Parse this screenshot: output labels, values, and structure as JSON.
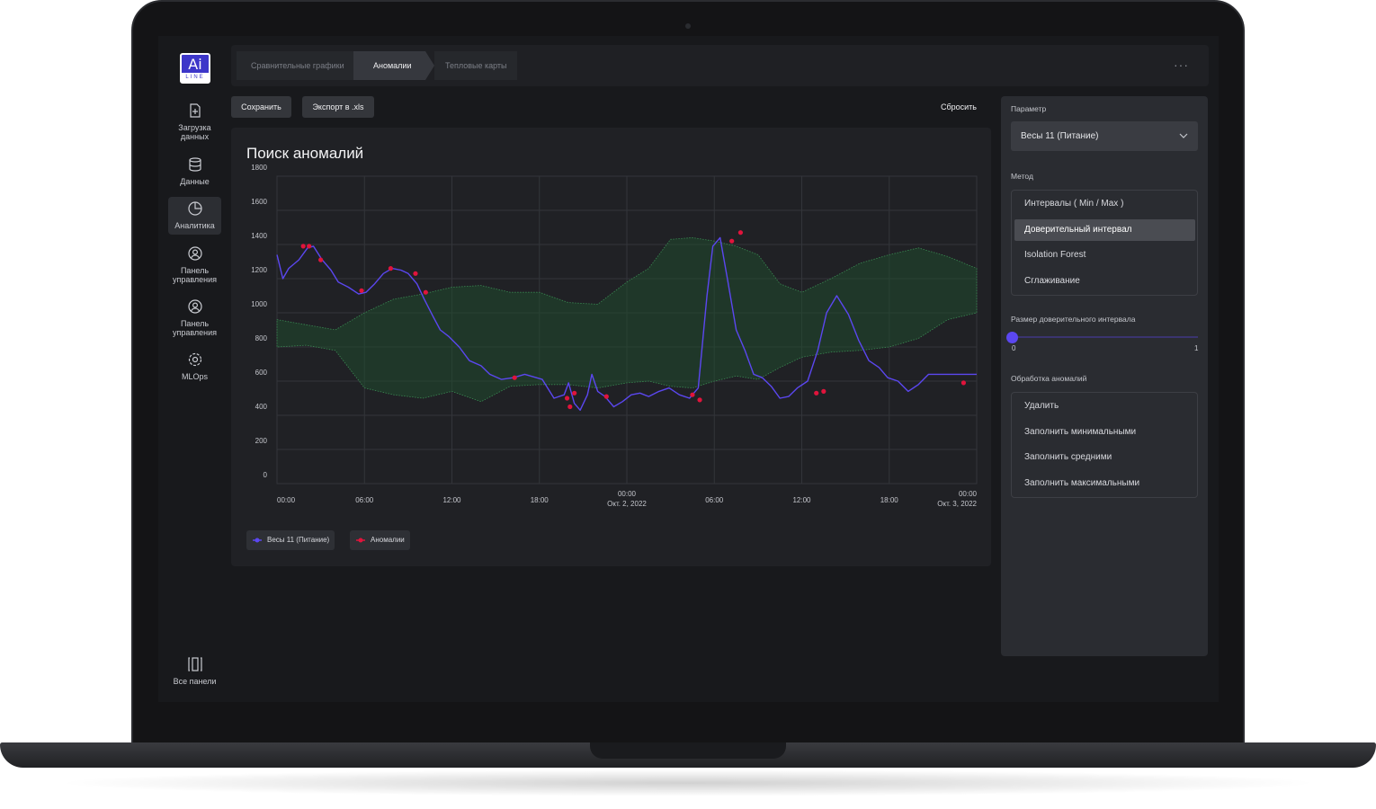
{
  "sidebar": {
    "logo_text": "Ai",
    "logo_sub": "LINE",
    "items": [
      {
        "label": "Загрузка данных",
        "icon": "file-upload-icon"
      },
      {
        "label": "Данные",
        "icon": "database-icon"
      },
      {
        "label": "Аналитика",
        "icon": "pie-chart-icon",
        "active": true
      },
      {
        "label": "Панель управления",
        "icon": "user-panel-icon"
      },
      {
        "label": "Панель управления",
        "icon": "user-panel-icon"
      },
      {
        "label": "MLOps",
        "icon": "gear-icon"
      }
    ],
    "all_panels": {
      "label": "Все панели",
      "icon": "columns-icon"
    }
  },
  "tabs": [
    {
      "label": "Сравнительные графики"
    },
    {
      "label": "Аномалии",
      "active": true
    },
    {
      "label": "Тепловые карты"
    }
  ],
  "more_icon": "more-horizontal-icon",
  "toolbar": {
    "save": "Сохранить",
    "export": "Экспорт в .xls",
    "reset": "Сбросить"
  },
  "chart_card": {
    "title": "Поиск аномалий"
  },
  "chart_data": {
    "type": "line",
    "title": "Поиск аномалий",
    "xlabel": "",
    "ylabel": "",
    "ylim": [
      0,
      1800
    ],
    "y_ticks": [
      0,
      200,
      400,
      600,
      800,
      1000,
      1200,
      1400,
      1600,
      1800
    ],
    "x_ticks": [
      {
        "t": 0,
        "label": "00:00",
        "sub": ""
      },
      {
        "t": 6,
        "label": "06:00",
        "sub": ""
      },
      {
        "t": 12,
        "label": "12:00",
        "sub": ""
      },
      {
        "t": 18,
        "label": "18:00",
        "sub": ""
      },
      {
        "t": 24,
        "label": "00:00",
        "sub": "Окт. 2, 2022"
      },
      {
        "t": 30,
        "label": "06:00",
        "sub": ""
      },
      {
        "t": 36,
        "label": "12:00",
        "sub": ""
      },
      {
        "t": 42,
        "label": "18:00",
        "sub": ""
      },
      {
        "t": 48,
        "label": "00:00",
        "sub": "Окт. 3, 2022"
      }
    ],
    "grid": true,
    "legend_position": "bottom-left",
    "colors": {
      "series": "#5b47f0",
      "anomaly": "#e0143c",
      "band_fill": "#1f4a2e",
      "band_line": "#3a8a52"
    },
    "series": [
      {
        "name": "Весы 11 (Питание)",
        "t": [
          0,
          0.4,
          0.8,
          1.5,
          2.1,
          2.5,
          3.1,
          3.7,
          4.2,
          4.9,
          5.6,
          6.1,
          6.7,
          7.3,
          7.9,
          8.5,
          9.0,
          9.6,
          10.1,
          10.7,
          11.2,
          11.8,
          12.5,
          13.2,
          14.0,
          14.6,
          15.4,
          16.2,
          17.0,
          18.2,
          19.0,
          19.7,
          20.0,
          20.4,
          20.8,
          21.3,
          21.6,
          22.0,
          22.5,
          23.1,
          23.7,
          24.3,
          24.9,
          25.5,
          26.2,
          26.9,
          27.6,
          28.3,
          28.9,
          29.5,
          29.9,
          30.4,
          30.9,
          31.5,
          32.1,
          32.7,
          33.3,
          33.9,
          34.5,
          35.1,
          35.7,
          36.4,
          37.1,
          37.7,
          38.4,
          39.2,
          39.9,
          40.6,
          41.3,
          41.9,
          42.6,
          43.3,
          44.0,
          44.7,
          45.4,
          46.1,
          46.8,
          47.3,
          47.8,
          48.0
        ],
        "values": [
          1340,
          1200,
          1260,
          1310,
          1380,
          1390,
          1310,
          1250,
          1180,
          1150,
          1110,
          1120,
          1170,
          1230,
          1260,
          1250,
          1230,
          1170,
          1080,
          980,
          900,
          860,
          800,
          720,
          690,
          640,
          610,
          620,
          640,
          610,
          500,
          520,
          590,
          470,
          430,
          520,
          640,
          540,
          510,
          450,
          480,
          520,
          530,
          510,
          540,
          560,
          520,
          500,
          560,
          1100,
          1390,
          1440,
          1200,
          900,
          780,
          640,
          620,
          570,
          500,
          510,
          560,
          600,
          780,
          1000,
          1100,
          990,
          840,
          720,
          680,
          620,
          600,
          540,
          580,
          640,
          640,
          640,
          640,
          640,
          640,
          640
        ],
        "anomalies": [
          {
            "t": 1.8,
            "v": 1390
          },
          {
            "t": 2.2,
            "v": 1390
          },
          {
            "t": 3.0,
            "v": 1310
          },
          {
            "t": 5.8,
            "v": 1130
          },
          {
            "t": 7.8,
            "v": 1260
          },
          {
            "t": 9.5,
            "v": 1230
          },
          {
            "t": 10.2,
            "v": 1120
          },
          {
            "t": 16.3,
            "v": 620
          },
          {
            "t": 19.9,
            "v": 500
          },
          {
            "t": 20.1,
            "v": 450
          },
          {
            "t": 20.4,
            "v": 530
          },
          {
            "t": 22.6,
            "v": 510
          },
          {
            "t": 28.5,
            "v": 520
          },
          {
            "t": 29.0,
            "v": 490
          },
          {
            "t": 31.2,
            "v": 1420
          },
          {
            "t": 31.8,
            "v": 1470
          },
          {
            "t": 37.0,
            "v": 530
          },
          {
            "t": 37.5,
            "v": 540
          },
          {
            "t": 47.1,
            "v": 590
          }
        ]
      }
    ],
    "band": {
      "t": [
        0,
        2,
        4,
        6,
        8,
        10,
        12,
        14,
        16,
        18,
        20,
        22,
        24,
        25.5,
        27,
        28.5,
        30,
        31.5,
        33,
        34.5,
        36,
        38,
        40,
        42,
        44,
        46,
        48
      ],
      "upper": [
        960,
        930,
        900,
        1000,
        1080,
        1110,
        1150,
        1160,
        1120,
        1120,
        1060,
        1050,
        1180,
        1260,
        1430,
        1440,
        1420,
        1390,
        1340,
        1170,
        1120,
        1200,
        1290,
        1340,
        1380,
        1330,
        1260
      ],
      "lower": [
        800,
        810,
        780,
        560,
        520,
        500,
        540,
        480,
        570,
        580,
        580,
        560,
        590,
        600,
        570,
        560,
        600,
        630,
        610,
        680,
        740,
        770,
        780,
        800,
        850,
        960,
        1000
      ]
    }
  },
  "legend": [
    {
      "label": "Весы 11 (Питание)",
      "color": "#5b47f0"
    },
    {
      "label": "Аномалии",
      "color": "#e0143c"
    }
  ],
  "right_panel": {
    "param_label": "Параметр",
    "param_value": "Весы 11 (Питание)",
    "method_label": "Метод",
    "methods": [
      "Интервалы ( Min / Max )",
      "Доверительный интервал",
      "Isolation Forest",
      "Сглаживание"
    ],
    "method_selected_index": 1,
    "interval_label": "Размер доверительного интервала",
    "slider_min": "0",
    "slider_max": "1",
    "slider_value": 0,
    "handling_label": "Обработка аномалий",
    "handling": [
      "Удалить",
      "Заполнить минимальными",
      "Заполнить средними",
      "Заполнить максимальными"
    ]
  }
}
